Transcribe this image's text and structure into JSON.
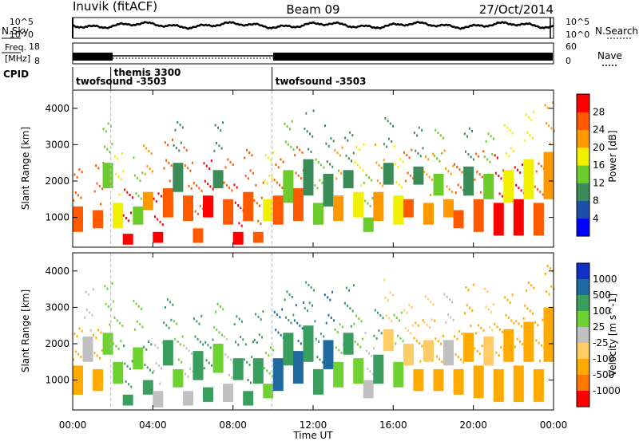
{
  "header": {
    "station": "Inuvik (fitACF)",
    "beam": "Beam 09",
    "date": "27/Oct/2014"
  },
  "noise_panel": {
    "left_label": "N.Sky",
    "right_label": "N.Search",
    "left_ticks": [
      "10^5",
      "10^0"
    ],
    "right_ticks": [
      "10^5",
      "10^0"
    ]
  },
  "freq_panel": {
    "left_label_top": "Freq.",
    "left_label_bottom": "[MHz]",
    "right_label": "Nave",
    "left_ticks": [
      "18",
      "8"
    ],
    "right_ticks": [
      "60",
      "0"
    ]
  },
  "cpid": {
    "label": "CPID",
    "modes": [
      {
        "name": "twofsound -3503",
        "start_hour": 0.0,
        "end_hour": 1.9
      },
      {
        "name": "themis 3300",
        "start_hour": 1.9,
        "end_hour": 9.95
      },
      {
        "name": "twofsound -3503",
        "start_hour": 9.95,
        "end_hour": 24.0
      }
    ]
  },
  "x_axis": {
    "title": "Time UT",
    "tick_labels": [
      "00:00",
      "04:00",
      "08:00",
      "12:00",
      "16:00",
      "20:00",
      "00:00"
    ]
  },
  "colors": {
    "power_scale": [
      "#0000ff",
      "#1a4ea8",
      "#3c8c5a",
      "#6ccc2c",
      "#f0f000",
      "#ff9900",
      "#ff5a00",
      "#ff0000"
    ],
    "velocity_scale": [
      "#ff0000",
      "#ff7800",
      "#ffaa00",
      "#ffcc66",
      "#c0c0c0",
      "#6ed232",
      "#3a9e5e",
      "#1f6aa0",
      "#1030c8"
    ]
  },
  "chart_data": [
    {
      "type": "heatmap",
      "title": "",
      "xlabel": "",
      "ylabel": "Slant Range [km]",
      "xlim": [
        0,
        24
      ],
      "ylim": [
        180,
        4500
      ],
      "y_tick_labels": [
        "1000",
        "2000",
        "3000",
        "4000"
      ],
      "colorbar_label": "Power [dB]",
      "colorbar_tick_labels": [
        "4",
        "8",
        "12",
        "16",
        "20",
        "24",
        "28"
      ],
      "bands": [
        {
          "x": 0.0,
          "y1": 600,
          "y2": 1300,
          "v": 24
        },
        {
          "x": 1.0,
          "y1": 700,
          "y2": 1200,
          "v": 26
        },
        {
          "x": 1.5,
          "y1": 1800,
          "y2": 2500,
          "v": 12
        },
        {
          "x": 2.0,
          "y1": 700,
          "y2": 1400,
          "v": 16
        },
        {
          "x": 2.5,
          "y1": 250,
          "y2": 550,
          "v": 28
        },
        {
          "x": 3.0,
          "y1": 800,
          "y2": 1300,
          "v": 12
        },
        {
          "x": 3.5,
          "y1": 1200,
          "y2": 1700,
          "v": 22
        },
        {
          "x": 4.0,
          "y1": 300,
          "y2": 600,
          "v": 28
        },
        {
          "x": 4.5,
          "y1": 1000,
          "y2": 1800,
          "v": 26
        },
        {
          "x": 5.0,
          "y1": 1700,
          "y2": 2500,
          "v": 10
        },
        {
          "x": 5.5,
          "y1": 900,
          "y2": 1600,
          "v": 24
        },
        {
          "x": 6.0,
          "y1": 300,
          "y2": 700,
          "v": 26
        },
        {
          "x": 6.5,
          "y1": 1000,
          "y2": 1600,
          "v": 28
        },
        {
          "x": 7.0,
          "y1": 1800,
          "y2": 2300,
          "v": 8
        },
        {
          "x": 7.5,
          "y1": 800,
          "y2": 1500,
          "v": 26
        },
        {
          "x": 8.0,
          "y1": 250,
          "y2": 600,
          "v": 28
        },
        {
          "x": 8.5,
          "y1": 900,
          "y2": 1700,
          "v": 24
        },
        {
          "x": 9.0,
          "y1": 300,
          "y2": 600,
          "v": 26
        },
        {
          "x": 9.5,
          "y1": 900,
          "y2": 1500,
          "v": 16
        },
        {
          "x": 10.0,
          "y1": 800,
          "y2": 1600,
          "v": 26
        },
        {
          "x": 10.5,
          "y1": 1400,
          "y2": 2300,
          "v": 14
        },
        {
          "x": 11.0,
          "y1": 900,
          "y2": 1800,
          "v": 24
        },
        {
          "x": 11.5,
          "y1": 1600,
          "y2": 2600,
          "v": 10
        },
        {
          "x": 12.0,
          "y1": 800,
          "y2": 1400,
          "v": 14
        },
        {
          "x": 12.5,
          "y1": 1300,
          "y2": 2200,
          "v": 8
        },
        {
          "x": 13.0,
          "y1": 900,
          "y2": 1600,
          "v": 20
        },
        {
          "x": 13.5,
          "y1": 1800,
          "y2": 2300,
          "v": 10
        },
        {
          "x": 14.0,
          "y1": 1000,
          "y2": 1700,
          "v": 18
        },
        {
          "x": 14.5,
          "y1": 600,
          "y2": 1000,
          "v": 14
        },
        {
          "x": 15.0,
          "y1": 900,
          "y2": 1700,
          "v": 22
        },
        {
          "x": 15.5,
          "y1": 1900,
          "y2": 2500,
          "v": 8
        },
        {
          "x": 16.0,
          "y1": 800,
          "y2": 1600,
          "v": 18
        },
        {
          "x": 16.5,
          "y1": 1000,
          "y2": 1500,
          "v": 24
        },
        {
          "x": 17.0,
          "y1": 1900,
          "y2": 2400,
          "v": 10
        },
        {
          "x": 17.5,
          "y1": 800,
          "y2": 1400,
          "v": 22
        },
        {
          "x": 18.0,
          "y1": 1600,
          "y2": 2200,
          "v": 12
        },
        {
          "x": 18.5,
          "y1": 1000,
          "y2": 1500,
          "v": 20
        },
        {
          "x": 19.0,
          "y1": 700,
          "y2": 1200,
          "v": 26
        },
        {
          "x": 19.5,
          "y1": 1600,
          "y2": 2400,
          "v": 10
        },
        {
          "x": 20.0,
          "y1": 600,
          "y2": 1500,
          "v": 24
        },
        {
          "x": 20.5,
          "y1": 1500,
          "y2": 2200,
          "v": 12
        },
        {
          "x": 21.0,
          "y1": 500,
          "y2": 1400,
          "v": 28
        },
        {
          "x": 21.5,
          "y1": 1400,
          "y2": 2300,
          "v": 16
        },
        {
          "x": 22.0,
          "y1": 500,
          "y2": 1500,
          "v": 28
        },
        {
          "x": 22.5,
          "y1": 1500,
          "y2": 2600,
          "v": 18
        },
        {
          "x": 23.0,
          "y1": 500,
          "y2": 1400,
          "v": 26
        },
        {
          "x": 23.5,
          "y1": 1500,
          "y2": 2800,
          "v": 20
        }
      ]
    },
    {
      "type": "heatmap",
      "title": "",
      "xlabel": "Time UT",
      "ylabel": "Slant Range [km]",
      "xlim": [
        0,
        24
      ],
      "ylim": [
        180,
        4500
      ],
      "y_tick_labels": [
        "1000",
        "2000",
        "3000",
        "4000"
      ],
      "colorbar_label": "Velocity [m s^-1]",
      "colorbar_tick_labels": [
        "1000",
        "500",
        "100",
        "25",
        "-25",
        "-100",
        "-500",
        "-1000"
      ],
      "bands": [
        {
          "x": 0.0,
          "y1": 600,
          "y2": 1400,
          "v": -300
        },
        {
          "x": 0.5,
          "y1": 1500,
          "y2": 2200,
          "v": 0
        },
        {
          "x": 1.0,
          "y1": 700,
          "y2": 1300,
          "v": -300
        },
        {
          "x": 1.5,
          "y1": 1700,
          "y2": 2300,
          "v": 50
        },
        {
          "x": 2.0,
          "y1": 900,
          "y2": 1500,
          "v": 80
        },
        {
          "x": 2.5,
          "y1": 300,
          "y2": 600,
          "v": 250
        },
        {
          "x": 3.0,
          "y1": 1300,
          "y2": 1900,
          "v": 80
        },
        {
          "x": 3.5,
          "y1": 600,
          "y2": 1000,
          "v": 300
        },
        {
          "x": 4.0,
          "y1": 250,
          "y2": 700,
          "v": 0
        },
        {
          "x": 4.5,
          "y1": 1400,
          "y2": 2100,
          "v": 250
        },
        {
          "x": 5.0,
          "y1": 800,
          "y2": 1300,
          "v": 80
        },
        {
          "x": 5.5,
          "y1": 300,
          "y2": 700,
          "v": 0
        },
        {
          "x": 6.0,
          "y1": 1000,
          "y2": 1800,
          "v": 300
        },
        {
          "x": 6.5,
          "y1": 400,
          "y2": 800,
          "v": 250
        },
        {
          "x": 7.0,
          "y1": 1200,
          "y2": 2000,
          "v": 80
        },
        {
          "x": 7.5,
          "y1": 400,
          "y2": 900,
          "v": 0
        },
        {
          "x": 8.0,
          "y1": 1000,
          "y2": 1600,
          "v": 300
        },
        {
          "x": 8.5,
          "y1": 300,
          "y2": 700,
          "v": 250
        },
        {
          "x": 9.0,
          "y1": 900,
          "y2": 1600,
          "v": 250
        },
        {
          "x": 9.5,
          "y1": 500,
          "y2": 900,
          "v": 80
        },
        {
          "x": 10.0,
          "y1": 700,
          "y2": 1600,
          "v": 700
        },
        {
          "x": 10.5,
          "y1": 1400,
          "y2": 2300,
          "v": 250
        },
        {
          "x": 11.0,
          "y1": 900,
          "y2": 1800,
          "v": 700
        },
        {
          "x": 11.5,
          "y1": 1500,
          "y2": 2500,
          "v": 300
        },
        {
          "x": 12.0,
          "y1": 600,
          "y2": 1300,
          "v": 250
        },
        {
          "x": 12.5,
          "y1": 1300,
          "y2": 2100,
          "v": 700
        },
        {
          "x": 13.0,
          "y1": 800,
          "y2": 1500,
          "v": 80
        },
        {
          "x": 13.5,
          "y1": 1700,
          "y2": 2300,
          "v": 300
        },
        {
          "x": 14.0,
          "y1": 900,
          "y2": 1600,
          "v": 80
        },
        {
          "x": 14.5,
          "y1": 500,
          "y2": 1000,
          "v": 0
        },
        {
          "x": 15.0,
          "y1": 900,
          "y2": 1700,
          "v": 250
        },
        {
          "x": 15.5,
          "y1": 1800,
          "y2": 2400,
          "v": -60
        },
        {
          "x": 16.0,
          "y1": 800,
          "y2": 1500,
          "v": 80
        },
        {
          "x": 16.5,
          "y1": 1400,
          "y2": 2000,
          "v": -60
        },
        {
          "x": 17.0,
          "y1": 700,
          "y2": 1300,
          "v": -300
        },
        {
          "x": 17.5,
          "y1": 1500,
          "y2": 2100,
          "v": -60
        },
        {
          "x": 18.0,
          "y1": 700,
          "y2": 1300,
          "v": -300
        },
        {
          "x": 18.5,
          "y1": 1400,
          "y2": 2100,
          "v": 0
        },
        {
          "x": 19.0,
          "y1": 600,
          "y2": 1300,
          "v": -300
        },
        {
          "x": 19.5,
          "y1": 1500,
          "y2": 2300,
          "v": -300
        },
        {
          "x": 20.0,
          "y1": 500,
          "y2": 1400,
          "v": -300
        },
        {
          "x": 20.5,
          "y1": 1400,
          "y2": 2200,
          "v": -60
        },
        {
          "x": 21.0,
          "y1": 400,
          "y2": 1300,
          "v": -300
        },
        {
          "x": 21.5,
          "y1": 1500,
          "y2": 2400,
          "v": -300
        },
        {
          "x": 22.0,
          "y1": 400,
          "y2": 1400,
          "v": -300
        },
        {
          "x": 22.5,
          "y1": 1500,
          "y2": 2600,
          "v": -300
        },
        {
          "x": 23.0,
          "y1": 400,
          "y2": 1300,
          "v": -300
        },
        {
          "x": 23.5,
          "y1": 1500,
          "y2": 3000,
          "v": -300
        }
      ]
    }
  ]
}
